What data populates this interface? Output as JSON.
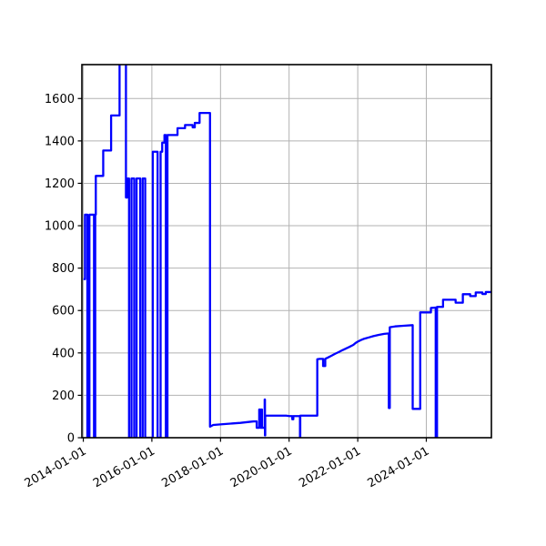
{
  "figure": {
    "title": "",
    "background_color": "#ffffff"
  },
  "chart_data": {
    "type": "line",
    "title": "",
    "xlabel": "",
    "ylabel": "",
    "grid": true,
    "legend": null,
    "line_color": "#0000ff",
    "grid_color": "#b2b2b2",
    "spine_color": "#000000",
    "x_tick_labels": [
      "2014-01-01",
      "2016-01-01",
      "2018-01-01",
      "2020-01-01",
      "2022-01-01",
      "2024-01-01"
    ],
    "y_ticks": [
      0,
      200,
      400,
      600,
      800,
      1000,
      1200,
      1400,
      1600
    ],
    "xlim": [
      "2013-12-17",
      "2025-11-24"
    ],
    "ylim": [
      0,
      1760
    ],
    "clipped_above_ymax": true,
    "note": "Spike in early 2015 exceeds the top of the y-axis and is clipped; vertical lines are momentary drops to 0.",
    "series": [
      {
        "name": "value",
        "points": [
          [
            "2014-01-03",
            748
          ],
          [
            "2014-01-19",
            748
          ],
          [
            "2014-01-19",
            1052
          ],
          [
            "2014-02-13",
            1052
          ],
          [
            "2014-02-13",
            0
          ],
          [
            "2014-03-07",
            0
          ],
          [
            "2014-03-07",
            1052
          ],
          [
            "2014-04-25",
            1052
          ],
          [
            "2014-04-25",
            0
          ],
          [
            "2014-05-08",
            0
          ],
          [
            "2014-05-08",
            1052
          ],
          [
            "2014-05-14",
            1052
          ],
          [
            "2014-05-14",
            1235
          ],
          [
            "2014-08-01",
            1235
          ],
          [
            "2014-08-01",
            1355
          ],
          [
            "2014-10-24",
            1355
          ],
          [
            "2014-10-24",
            1520
          ],
          [
            "2015-01-22",
            1520
          ],
          [
            "2015-01-22",
            1900
          ],
          [
            "2015-03-31",
            1900
          ],
          [
            "2015-03-31",
            1133
          ],
          [
            "2015-04-14",
            1133
          ],
          [
            "2015-04-14",
            1223
          ],
          [
            "2015-05-03",
            1223
          ],
          [
            "2015-05-03",
            0
          ],
          [
            "2015-05-29",
            0
          ],
          [
            "2015-05-29",
            1223
          ],
          [
            "2015-06-27",
            1223
          ],
          [
            "2015-06-27",
            0
          ],
          [
            "2015-07-22",
            0
          ],
          [
            "2015-07-22",
            1223
          ],
          [
            "2015-08-30",
            1223
          ],
          [
            "2015-08-30",
            0
          ],
          [
            "2015-09-25",
            0
          ],
          [
            "2015-09-25",
            1223
          ],
          [
            "2015-10-22",
            1223
          ],
          [
            "2015-10-22",
            0
          ],
          [
            "2016-01-11",
            0
          ],
          [
            "2016-01-11",
            1349
          ],
          [
            "2016-03-02",
            1349
          ],
          [
            "2016-03-02",
            0
          ],
          [
            "2016-04-03",
            0
          ],
          [
            "2016-04-03",
            1349
          ],
          [
            "2016-04-20",
            1349
          ],
          [
            "2016-04-20",
            1392
          ],
          [
            "2016-05-14",
            1392
          ],
          [
            "2016-05-14",
            1428
          ],
          [
            "2016-05-29",
            1428
          ],
          [
            "2016-05-29",
            0
          ],
          [
            "2016-06-15",
            0
          ],
          [
            "2016-06-15",
            1428
          ],
          [
            "2016-09-30",
            1428
          ],
          [
            "2016-09-30",
            1460
          ],
          [
            "2016-12-19",
            1460
          ],
          [
            "2016-12-19",
            1475
          ],
          [
            "2017-03-10",
            1475
          ],
          [
            "2017-03-10",
            1464
          ],
          [
            "2017-04-02",
            1464
          ],
          [
            "2017-04-02",
            1485
          ],
          [
            "2017-05-23",
            1485
          ],
          [
            "2017-05-23",
            1532
          ],
          [
            "2017-09-11",
            1532
          ],
          [
            "2017-09-11",
            52
          ],
          [
            "2017-10-15",
            60
          ],
          [
            "2018-03-01",
            65
          ],
          [
            "2018-08-01",
            70
          ],
          [
            "2018-12-20",
            77
          ],
          [
            "2019-01-21",
            77
          ],
          [
            "2019-01-21",
            47
          ],
          [
            "2019-02-17",
            47
          ],
          [
            "2019-02-17",
            133
          ],
          [
            "2019-03-01",
            133
          ],
          [
            "2019-03-01",
            47
          ],
          [
            "2019-03-10",
            47
          ],
          [
            "2019-03-10",
            133
          ],
          [
            "2019-03-18",
            133
          ],
          [
            "2019-03-18",
            47
          ],
          [
            "2019-04-16",
            47
          ],
          [
            "2019-04-16",
            180
          ],
          [
            "2019-04-19",
            180
          ],
          [
            "2019-04-19",
            11
          ],
          [
            "2019-04-22",
            11
          ],
          [
            "2019-04-22",
            104
          ],
          [
            "2019-12-01",
            104
          ],
          [
            "2020-01-05",
            102
          ],
          [
            "2020-02-04",
            102
          ],
          [
            "2020-02-04",
            87
          ],
          [
            "2020-02-15",
            87
          ],
          [
            "2020-02-15",
            102
          ],
          [
            "2020-04-26",
            102
          ],
          [
            "2020-04-26",
            0
          ],
          [
            "2020-04-29",
            0
          ],
          [
            "2020-04-29",
            104
          ],
          [
            "2020-10-27",
            104
          ],
          [
            "2020-10-27",
            370
          ],
          [
            "2020-11-22",
            372
          ],
          [
            "2020-12-28",
            372
          ],
          [
            "2020-12-28",
            338
          ],
          [
            "2021-01-20",
            338
          ],
          [
            "2021-01-20",
            372
          ],
          [
            "2021-02-17",
            378
          ],
          [
            "2021-03-28",
            387
          ],
          [
            "2021-05-05",
            396
          ],
          [
            "2021-06-13",
            404
          ],
          [
            "2021-07-22",
            413
          ],
          [
            "2021-08-30",
            421
          ],
          [
            "2021-10-07",
            429
          ],
          [
            "2021-11-15",
            438
          ],
          [
            "2021-12-09",
            447
          ],
          [
            "2021-12-31",
            453
          ],
          [
            "2022-02-01",
            460
          ],
          [
            "2022-03-11",
            467
          ],
          [
            "2022-04-29",
            473
          ],
          [
            "2022-06-16",
            479
          ],
          [
            "2022-08-13",
            485
          ],
          [
            "2022-10-10",
            490
          ],
          [
            "2022-11-28",
            492
          ],
          [
            "2022-11-28",
            140
          ],
          [
            "2022-12-08",
            140
          ],
          [
            "2022-12-08",
            521
          ],
          [
            "2023-02-01",
            525
          ],
          [
            "2023-05-01",
            528
          ],
          [
            "2023-08-09",
            531
          ],
          [
            "2023-08-09",
            136
          ],
          [
            "2023-10-28",
            136
          ],
          [
            "2023-10-28",
            591
          ],
          [
            "2024-02-19",
            591
          ],
          [
            "2024-02-19",
            612
          ],
          [
            "2024-04-10",
            614
          ],
          [
            "2024-04-10",
            0
          ],
          [
            "2024-04-24",
            0
          ],
          [
            "2024-04-24",
            617
          ],
          [
            "2024-06-27",
            617
          ],
          [
            "2024-06-27",
            651
          ],
          [
            "2024-11-08",
            651
          ],
          [
            "2024-11-08",
            637
          ],
          [
            "2025-01-24",
            637
          ],
          [
            "2025-01-24",
            677
          ],
          [
            "2025-04-12",
            677
          ],
          [
            "2025-04-12",
            668
          ],
          [
            "2025-06-10",
            668
          ],
          [
            "2025-06-10",
            685
          ],
          [
            "2025-08-20",
            685
          ],
          [
            "2025-08-20",
            678
          ],
          [
            "2025-09-25",
            678
          ],
          [
            "2025-09-25",
            687
          ],
          [
            "2025-11-24",
            687
          ]
        ]
      }
    ]
  }
}
